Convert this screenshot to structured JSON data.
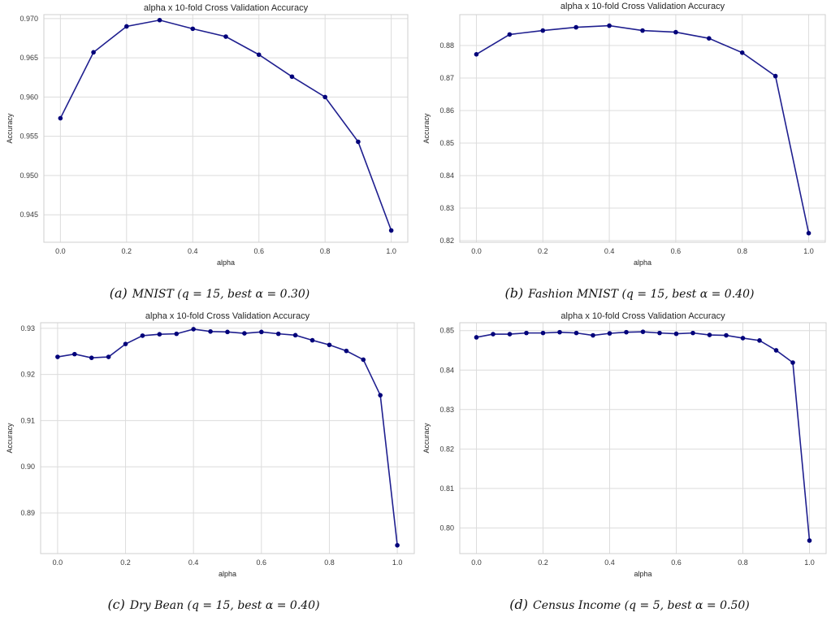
{
  "colors": {
    "line": "#1f1f8f",
    "marker": "#00007a",
    "grid": "#dcdcdc"
  },
  "chart_data": [
    {
      "type": "line",
      "title": "alpha x 10-fold Cross Validation Accuracy",
      "xlabel": "alpha",
      "ylabel": "Accuracy",
      "caption_label": "(a)",
      "caption": "MNIST (q = 15, best α = 0.30)",
      "xlim": [
        -0.05,
        1.05
      ],
      "ylim": [
        0.9415,
        0.9705
      ],
      "xticks": [
        0.0,
        0.2,
        0.4,
        0.6,
        0.8,
        1.0
      ],
      "xtick_labels": [
        "0.0",
        "0.2",
        "0.4",
        "0.6",
        "0.8",
        "1.0"
      ],
      "yticks": [
        0.945,
        0.95,
        0.955,
        0.96,
        0.965,
        0.97
      ],
      "ytick_labels": [
        "0.945",
        "0.950",
        "0.955",
        "0.960",
        "0.965",
        "0.970"
      ],
      "grid": true,
      "x": [
        0.0,
        0.1,
        0.2,
        0.3,
        0.4,
        0.5,
        0.6,
        0.7,
        0.8,
        0.9,
        1.0
      ],
      "y": [
        0.9573,
        0.9657,
        0.969,
        0.9698,
        0.9687,
        0.9677,
        0.9654,
        0.9626,
        0.96,
        0.9543,
        0.943
      ]
    },
    {
      "type": "line",
      "title": "alpha x 10-fold Cross Validation Accuracy",
      "xlabel": "alpha",
      "ylabel": "Accuracy",
      "caption_label": "(b)",
      "caption": "Fashion MNIST (q = 15, best α = 0.40)",
      "xlim": [
        -0.05,
        1.05
      ],
      "ylim": [
        0.8195,
        0.8895
      ],
      "xticks": [
        0.0,
        0.2,
        0.4,
        0.6,
        0.8,
        1.0
      ],
      "xtick_labels": [
        "0.0",
        "0.2",
        "0.4",
        "0.6",
        "0.8",
        "1.0"
      ],
      "yticks": [
        0.82,
        0.83,
        0.84,
        0.85,
        0.86,
        0.87,
        0.88
      ],
      "ytick_labels": [
        "0.82",
        "0.83",
        "0.84",
        "0.85",
        "0.86",
        "0.87",
        "0.88"
      ],
      "grid": true,
      "x": [
        0.0,
        0.1,
        0.2,
        0.3,
        0.4,
        0.5,
        0.6,
        0.7,
        0.8,
        0.9,
        1.0
      ],
      "y": [
        0.8773,
        0.8834,
        0.8846,
        0.8856,
        0.8861,
        0.8846,
        0.8841,
        0.8822,
        0.8778,
        0.8706,
        0.8223
      ]
    },
    {
      "type": "line",
      "title": "alpha x 10-fold Cross Validation Accuracy",
      "xlabel": "alpha",
      "ylabel": "Accuracy",
      "caption_label": "(c)",
      "caption": "Dry Bean (q = 15, best α = 0.40)",
      "xlim": [
        -0.05,
        1.05
      ],
      "ylim": [
        0.8812,
        0.9312
      ],
      "xticks": [
        0.0,
        0.2,
        0.4,
        0.6,
        0.8,
        1.0
      ],
      "xtick_labels": [
        "0.0",
        "0.2",
        "0.4",
        "0.6",
        "0.8",
        "1.0"
      ],
      "yticks": [
        0.89,
        0.9,
        0.91,
        0.92,
        0.93
      ],
      "ytick_labels": [
        "0.89",
        "0.90",
        "0.91",
        "0.92",
        "0.93"
      ],
      "grid": true,
      "x": [
        0.0,
        0.05,
        0.1,
        0.15,
        0.2,
        0.25,
        0.3,
        0.35,
        0.4,
        0.45,
        0.5,
        0.55,
        0.6,
        0.65,
        0.7,
        0.75,
        0.8,
        0.85,
        0.9,
        0.95,
        1.0
      ],
      "y": [
        0.9238,
        0.9244,
        0.9236,
        0.9238,
        0.9266,
        0.9284,
        0.9287,
        0.9288,
        0.9298,
        0.9293,
        0.9292,
        0.9289,
        0.9292,
        0.9288,
        0.9285,
        0.9274,
        0.9264,
        0.9251,
        0.9232,
        0.9155,
        0.883
      ]
    },
    {
      "type": "line",
      "title": "alpha x 10-fold Cross Validation Accuracy",
      "xlabel": "alpha",
      "ylabel": "Accuracy",
      "caption_label": "(d)",
      "caption": "Census Income (q = 5, best α = 0.50)",
      "xlim": [
        -0.05,
        1.05
      ],
      "ylim": [
        0.7935,
        0.852
      ],
      "xticks": [
        0.0,
        0.2,
        0.4,
        0.6,
        0.8,
        1.0
      ],
      "xtick_labels": [
        "0.0",
        "0.2",
        "0.4",
        "0.6",
        "0.8",
        "1.0"
      ],
      "yticks": [
        0.8,
        0.81,
        0.82,
        0.83,
        0.84,
        0.85
      ],
      "ytick_labels": [
        "0.80",
        "0.81",
        "0.82",
        "0.83",
        "0.84",
        "0.85"
      ],
      "grid": true,
      "x": [
        0.0,
        0.05,
        0.1,
        0.15,
        0.2,
        0.25,
        0.3,
        0.35,
        0.4,
        0.45,
        0.5,
        0.55,
        0.6,
        0.65,
        0.7,
        0.75,
        0.8,
        0.85,
        0.9,
        0.95,
        1.0
      ],
      "y": [
        0.8483,
        0.8491,
        0.8491,
        0.8494,
        0.8494,
        0.8496,
        0.8494,
        0.8488,
        0.8493,
        0.8496,
        0.8497,
        0.8494,
        0.8492,
        0.8494,
        0.8489,
        0.8488,
        0.8481,
        0.8475,
        0.845,
        0.8419,
        0.7968
      ]
    }
  ]
}
